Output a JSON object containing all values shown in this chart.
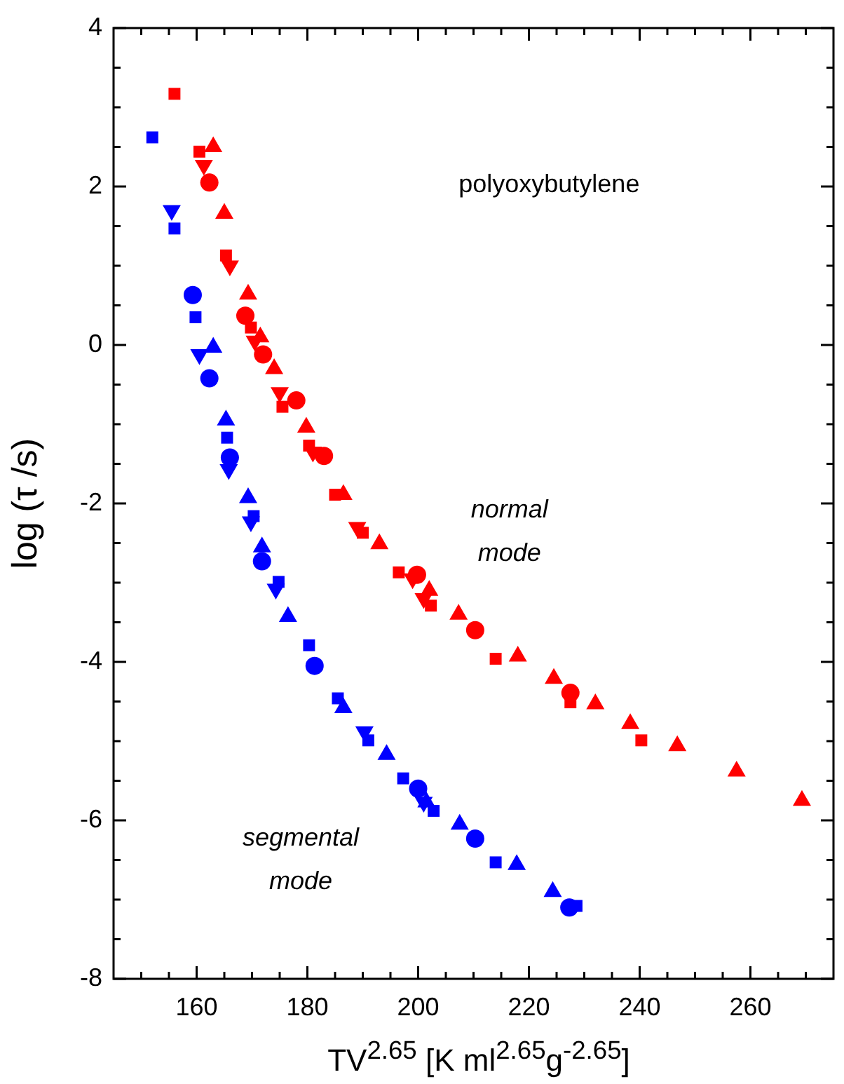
{
  "chart_data": {
    "type": "scatter",
    "xlabel": "TV$^{2.65}$ [K ml$^{2.65}$g$^{-2.65}$]",
    "ylabel": "log (τ /s)",
    "xlim": [
      145,
      275
    ],
    "ylim": [
      -8,
      4
    ],
    "xticks": [
      {
        "value": 150,
        "label": null
      },
      {
        "value": 155,
        "label": null
      },
      160,
      {
        "value": 165,
        "label": null
      },
      {
        "value": 170,
        "label": null
      },
      {
        "value": 175,
        "label": null
      },
      180,
      {
        "value": 185,
        "label": null
      },
      {
        "value": 190,
        "label": null
      },
      {
        "value": 195,
        "label": null
      },
      200,
      {
        "value": 205,
        "label": null
      },
      {
        "value": 210,
        "label": null
      },
      {
        "value": 215,
        "label": null
      },
      220,
      {
        "value": 225,
        "label": null
      },
      {
        "value": 230,
        "label": null
      },
      {
        "value": 235,
        "label": null
      },
      240,
      {
        "value": 245,
        "label": null
      },
      {
        "value": 250,
        "label": null
      },
      {
        "value": 255,
        "label": null
      },
      260,
      {
        "value": 265,
        "label": null
      },
      {
        "value": 270,
        "label": null
      }
    ],
    "yticks": [
      -8,
      {
        "value": -7.5,
        "label": null
      },
      {
        "value": -7,
        "label": null
      },
      {
        "value": -6.5,
        "label": null
      },
      -6,
      {
        "value": -5.5,
        "label": null
      },
      {
        "value": -5,
        "label": null
      },
      {
        "value": -4.5,
        "label": null
      },
      -4,
      {
        "value": -3.5,
        "label": null
      },
      {
        "value": -3,
        "label": null
      },
      {
        "value": -2.5,
        "label": null
      },
      -2,
      {
        "value": -1.5,
        "label": null
      },
      {
        "value": -1,
        "label": null
      },
      {
        "value": -0.5,
        "label": null
      },
      0,
      {
        "value": 0.5,
        "label": null
      },
      {
        "value": 1,
        "label": null
      },
      {
        "value": 1.5,
        "label": null
      },
      2,
      {
        "value": 2.5,
        "label": null
      },
      {
        "value": 3,
        "label": null
      },
      {
        "value": 3.5,
        "label": null
      },
      4
    ],
    "annotations": [
      "polyoxybutylene",
      "normal mode",
      "segmental mode"
    ],
    "series": [
      {
        "color": "#ff0000",
        "marker": "square",
        "x": [
          156,
          160.5,
          165.3,
          169.8,
          175.5,
          180.3,
          185,
          190,
          196.5,
          202.3,
          214,
          227.5,
          240.3
        ],
        "values": [
          3.17,
          2.44,
          1.13,
          0.22,
          -0.78,
          -1.27,
          -1.89,
          -2.37,
          -2.87,
          -3.29,
          -3.96,
          -4.51,
          -4.99
        ]
      },
      {
        "color": "#ff0000",
        "marker": "circle",
        "x": [
          162.3,
          168.8,
          172,
          178,
          183,
          199.8,
          210.3,
          227.5
        ],
        "values": [
          2.05,
          0.37,
          -0.12,
          -0.7,
          -1.4,
          -2.9,
          -3.6,
          -4.39
        ]
      },
      {
        "color": "#ff0000",
        "marker": "triangle",
        "x": [
          163,
          165,
          169.3,
          171.5,
          174,
          179.8,
          186.5,
          193,
          202,
          207.3,
          218,
          224.5,
          232,
          238.3,
          246.8,
          257.5,
          269.3
        ],
        "values": [
          2.5,
          1.66,
          0.64,
          0.1,
          -0.3,
          -1.04,
          -1.89,
          -2.51,
          -3.1,
          -3.4,
          -3.93,
          -4.21,
          -4.53,
          -4.78,
          -5.06,
          -5.38,
          -5.75
        ]
      },
      {
        "color": "#ff0000",
        "marker": "triangle-down",
        "x": [
          161.3,
          166,
          170.5,
          175,
          181,
          189,
          199,
          201
        ],
        "values": [
          2.27,
          1.0,
          0.05,
          -0.6,
          -1.35,
          -2.3,
          -2.95,
          -3.2
        ]
      },
      {
        "color": "#0000ff",
        "marker": "square",
        "x": [
          152,
          156,
          159.8,
          165.5,
          170.3,
          174.8,
          180.3,
          185.5,
          191,
          197.3,
          202.8,
          214,
          228.6
        ],
        "values": [
          2.62,
          1.47,
          0.35,
          -1.17,
          -2.16,
          -2.99,
          -3.79,
          -4.46,
          -4.99,
          -5.47,
          -5.88,
          -6.53,
          -7.08
        ]
      },
      {
        "color": "#0000ff",
        "marker": "circle",
        "x": [
          159.3,
          162.3,
          166,
          171.8,
          181.3,
          200,
          210.3,
          227.3
        ],
        "values": [
          0.63,
          -0.42,
          -1.42,
          -2.73,
          -4.05,
          -5.6,
          -6.23,
          -7.1
        ]
      },
      {
        "color": "#0000ff",
        "marker": "triangle",
        "x": [
          163,
          165.3,
          169.3,
          171.8,
          176.5,
          186.5,
          194.3,
          201.5,
          207.5,
          217.8,
          224.3
        ],
        "values": [
          -0.03,
          -0.95,
          -1.93,
          -2.55,
          -3.43,
          -4.58,
          -5.17,
          -5.77,
          -6.05,
          -6.56,
          -6.9
        ]
      },
      {
        "color": "#0000ff",
        "marker": "triangle-down",
        "x": [
          155.5,
          160.5,
          165.8,
          169.8,
          174.3,
          190.3,
          201
        ],
        "values": [
          1.7,
          -0.12,
          -1.57,
          -2.23,
          -3.08,
          -4.88,
          -5.77
        ]
      }
    ]
  }
}
